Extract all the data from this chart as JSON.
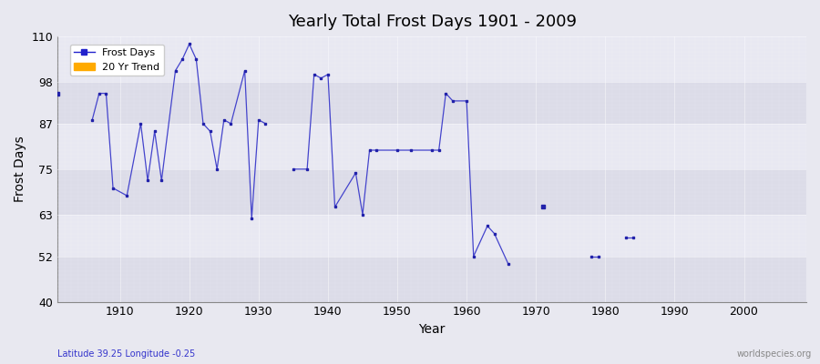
{
  "title": "Yearly Total Frost Days 1901 - 2009",
  "xlabel": "Year",
  "ylabel": "Frost Days",
  "xlim": [
    1901,
    2009
  ],
  "ylim": [
    40,
    110
  ],
  "yticks": [
    40,
    52,
    63,
    75,
    87,
    98,
    110
  ],
  "xticks": [
    1910,
    1920,
    1930,
    1940,
    1950,
    1960,
    1970,
    1980,
    1990,
    2000
  ],
  "bg_color": "#e8e8f0",
  "plot_bg_color": "#e0e0ec",
  "line_color": "#4444cc",
  "marker_color": "#2222aa",
  "legend_frost_color": "#2222cc",
  "legend_trend_color": "#ffaa00",
  "bottom_left_text": "Latitude 39.25 Longitude -0.25",
  "bottom_right_text": "worldspecies.org",
  "band_colors": [
    "#dcdce8",
    "#e8e8f2"
  ],
  "years": [
    1901,
    1906,
    1907,
    1908,
    1909,
    1911,
    1913,
    1914,
    1915,
    1916,
    1918,
    1919,
    1920,
    1921,
    1922,
    1923,
    1924,
    1925,
    1926,
    1928,
    1929,
    1930,
    1931,
    1935,
    1937,
    1938,
    1939,
    1940,
    1941,
    1944,
    1945,
    1946,
    1947,
    1950,
    1952,
    1955,
    1956,
    1957,
    1958,
    1960,
    1961,
    1963,
    1964,
    1966,
    1971,
    1978,
    1979,
    1983,
    1984
  ],
  "values": [
    95,
    88,
    95,
    95,
    70,
    68,
    87,
    72,
    85,
    72,
    101,
    104,
    108,
    104,
    87,
    85,
    75,
    88,
    87,
    101,
    62,
    88,
    87,
    75,
    75,
    100,
    99,
    100,
    65,
    74,
    63,
    80,
    80,
    80,
    80,
    80,
    80,
    95,
    93,
    93,
    52,
    60,
    58,
    50,
    65,
    52,
    52,
    57,
    57
  ]
}
